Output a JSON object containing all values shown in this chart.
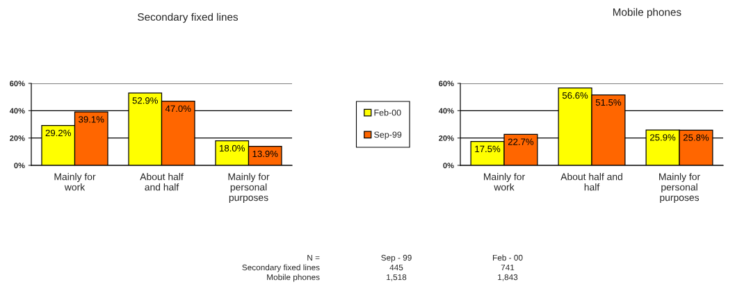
{
  "chart_data": [
    {
      "type": "bar",
      "title": "Secondary fixed lines",
      "categories": [
        "Mainly for\nwork",
        "About half\nand half",
        "Mainly for\npersonal\npurposes"
      ],
      "series": [
        {
          "name": "Feb-00",
          "color": "#ffff00",
          "values": [
            29.2,
            52.9,
            18.0
          ],
          "value_labels": [
            "29.2%",
            "52.9%",
            "18.0%"
          ]
        },
        {
          "name": "Sep-99",
          "color": "#ff6600",
          "values": [
            39.1,
            47.0,
            13.9
          ],
          "value_labels": [
            "39.1%",
            "47.0%",
            "13.9%"
          ]
        }
      ],
      "ylim": [
        0,
        60
      ],
      "yticks": [
        {
          "value": 0,
          "label": "0%"
        },
        {
          "value": 20,
          "label": "20%"
        },
        {
          "value": 40,
          "label": "40%"
        },
        {
          "value": 60,
          "label": "60%"
        }
      ],
      "grid": "y",
      "legend": "right",
      "annotations": [
        "N =",
        "Sep - 99",
        "Feb - 00",
        "Secondary fixed lines",
        "445",
        "741",
        "Mobile phones",
        "1,518",
        "1,843"
      ]
    },
    {
      "type": "bar",
      "title": "Mobile phones",
      "categories": [
        "Mainly for\nwork",
        "About half and\nhalf",
        "Mainly for\npersonal\npurposes"
      ],
      "series": [
        {
          "color": "#ffff00",
          "values": [
            17.5,
            56.6,
            25.9
          ],
          "value_labels": [
            "17.5%",
            "56.6%",
            "25.9%"
          ]
        },
        {
          "color": "#ff6600",
          "values": [
            22.7,
            51.5,
            25.8
          ],
          "value_labels": [
            "22.7%",
            "51.5%",
            "25.8%"
          ]
        }
      ],
      "ylim": [
        0,
        60
      ],
      "yticks": [
        {
          "value": 0,
          "label": "0%"
        },
        {
          "value": 20,
          "label": "20%"
        },
        {
          "value": 40,
          "label": "40%"
        },
        {
          "value": 60,
          "label": "60%"
        }
      ],
      "grid": "y"
    }
  ]
}
